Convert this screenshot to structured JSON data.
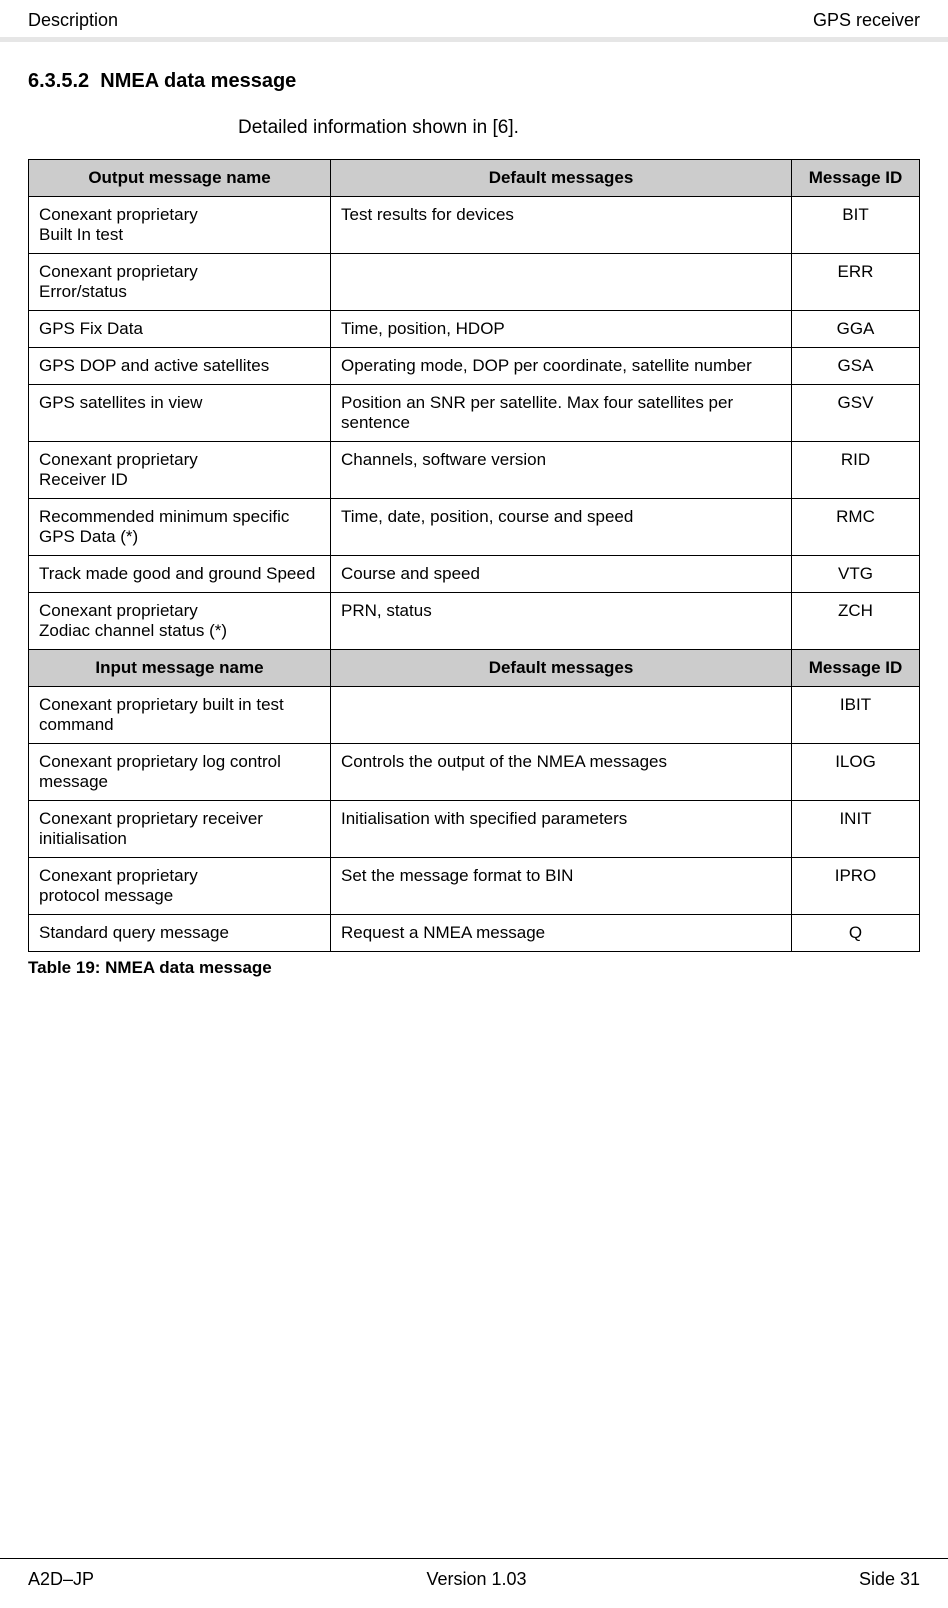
{
  "header": {
    "left": "Description",
    "right": "GPS receiver"
  },
  "section": {
    "number": "6.3.5.2",
    "title": "NMEA data message"
  },
  "intro": "Detailed information shown in [6].",
  "table": {
    "caption": "Table 19: NMEA data message",
    "output_header": {
      "c1": "Output message name",
      "c2": "Default messages",
      "c3": "Message ID"
    },
    "output_rows": [
      {
        "name": "Conexant proprietary\nBuilt In test",
        "def": "Test results for devices",
        "id": "BIT"
      },
      {
        "name": "Conexant proprietary\nError/status",
        "def": "",
        "id": "ERR"
      },
      {
        "name": "GPS Fix Data",
        "def": "Time, position, HDOP",
        "id": "GGA"
      },
      {
        "name": "GPS DOP and active satellites",
        "def": "Operating mode, DOP per coordinate, satellite number",
        "id": "GSA"
      },
      {
        "name": "GPS satellites in view",
        "def": "Position an SNR per satellite. Max four satellites per sentence",
        "id": "GSV"
      },
      {
        "name": "Conexant proprietary\nReceiver ID",
        "def": "Channels, software version",
        "id": "RID"
      },
      {
        "name": "Recommended minimum specific GPS Data (*)",
        "def": "Time, date, position, course and speed",
        "id": "RMC"
      },
      {
        "name": "Track made good and ground Speed",
        "def": "Course and speed",
        "id": "VTG"
      },
      {
        "name": "Conexant proprietary\nZodiac channel status (*)",
        "def": "PRN, status",
        "id": "ZCH"
      }
    ],
    "input_header": {
      "c1": "Input message name",
      "c2": "Default messages",
      "c3": "Message ID"
    },
    "input_rows": [
      {
        "name": "Conexant proprietary built in test command",
        "def": "",
        "id": "IBIT"
      },
      {
        "name": "Conexant proprietary log control message",
        "def": "Controls the output of the NMEA messages",
        "id": "ILOG"
      },
      {
        "name": "Conexant proprietary receiver initialisation",
        "def": "Initialisation with specified parameters",
        "id": "INIT"
      },
      {
        "name": "Conexant proprietary\nprotocol message",
        "def": "Set the message format to BIN",
        "id": "IPRO"
      },
      {
        "name": "Standard query message",
        "def": "Request a NMEA message",
        "id": "Q"
      }
    ]
  },
  "footer": {
    "left": "A2D–JP",
    "center": "Version 1.03",
    "right": "Side 31"
  },
  "colors": {
    "header_bg": "#cccccc",
    "rule_top": "#e6e6e6",
    "border": "#000000",
    "text": "#000000",
    "page_bg": "#ffffff"
  }
}
